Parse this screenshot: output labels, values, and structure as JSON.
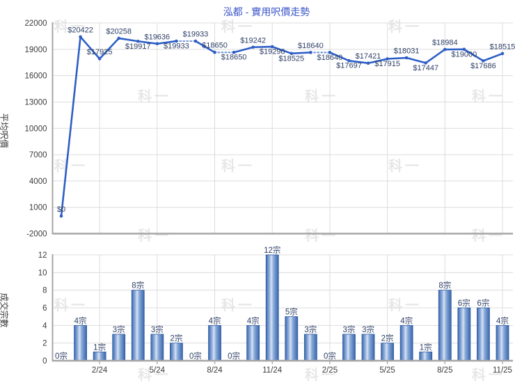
{
  "title": "泓都 - 實用呎價走勢",
  "watermark_text": "科一",
  "chart_data": [
    {
      "type": "line",
      "name": "average-price-per-sqft",
      "ylabel": "平均呎價",
      "ylim": [
        -2000,
        22000
      ],
      "yticks": [
        22000,
        19000,
        16000,
        13000,
        10000,
        7000,
        4000,
        1000,
        -2000
      ],
      "xticks": [
        {
          "i": 2,
          "label": "2/24"
        },
        {
          "i": 5,
          "label": "5/24"
        },
        {
          "i": 8,
          "label": "8/24"
        },
        {
          "i": 11,
          "label": "11/24"
        },
        {
          "i": 14,
          "label": "2/25"
        },
        {
          "i": 17,
          "label": "5/25"
        },
        {
          "i": 20,
          "label": "8/25"
        },
        {
          "i": 23,
          "label": "11/25"
        }
      ],
      "values": [
        0,
        20422,
        17925,
        20258,
        19917,
        19636,
        19933,
        19933,
        18650,
        18650,
        19242,
        19296,
        18525,
        18640,
        18640,
        17697,
        17421,
        17915,
        18031,
        17447,
        18984,
        19000,
        17686,
        18515
      ],
      "label_prefix": "$",
      "label_side": [
        "above",
        "above",
        "above",
        "above",
        "below",
        "above",
        "below",
        "above",
        "above",
        "below",
        "above",
        "below",
        "below",
        "above",
        "below",
        "below",
        "above",
        "below",
        "above",
        "below",
        "above",
        "below",
        "below",
        "above"
      ],
      "dotted_segments": [
        [
          6,
          7
        ],
        [
          8,
          9
        ],
        [
          13,
          14
        ]
      ],
      "grid": true,
      "legend": "none"
    },
    {
      "type": "bar",
      "name": "transaction-count",
      "ylabel": "成交宗數",
      "ylim": [
        0,
        12
      ],
      "yticks": [
        12,
        10,
        8,
        6,
        4,
        2,
        0
      ],
      "xticks": [
        {
          "i": 2,
          "label": "2/24"
        },
        {
          "i": 5,
          "label": "5/24"
        },
        {
          "i": 8,
          "label": "8/24"
        },
        {
          "i": 11,
          "label": "11/24"
        },
        {
          "i": 14,
          "label": "2/25"
        },
        {
          "i": 17,
          "label": "5/25"
        },
        {
          "i": 20,
          "label": "8/25"
        },
        {
          "i": 23,
          "label": "11/25"
        }
      ],
      "values": [
        0,
        4,
        1,
        3,
        8,
        3,
        2,
        0,
        4,
        0,
        4,
        12,
        5,
        3,
        0,
        3,
        3,
        2,
        4,
        1,
        8,
        6,
        6,
        4
      ],
      "label_suffix": "宗",
      "grid": true,
      "legend": "none"
    }
  ],
  "colors": {
    "title": "#3a55c8",
    "line": "#2d5ec6",
    "line_dotted": "#7b99d8",
    "value_label": "#2e3f66",
    "tick_label": "#3b3b3b",
    "axis": "#a6a6a6",
    "grid": "#dcdcdc",
    "bar_edge": "#3a67ad",
    "bar_highlight": "#d8e3f4",
    "bar_mid": "#8fafdc",
    "watermark": "#e7e7e9"
  }
}
